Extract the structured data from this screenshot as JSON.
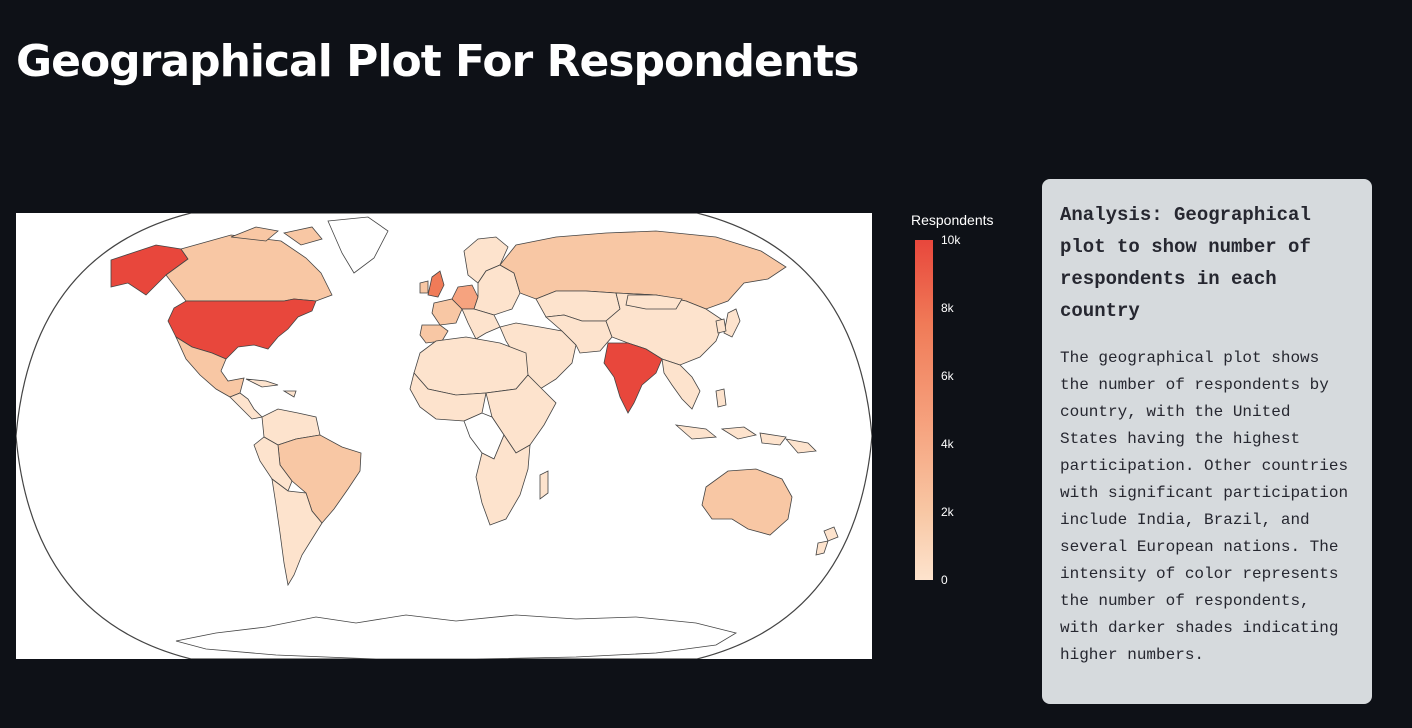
{
  "page": {
    "title": "Geographical Plot For Respondents"
  },
  "colors": {
    "background": "#0e1117",
    "map_background": "#ffffff",
    "card_background": "#d6dadd",
    "high": "#e8473c",
    "low": "#fde3cd"
  },
  "chart_data": {
    "type": "choropleth",
    "projection": "robinson",
    "colorbar": {
      "title": "Respondents",
      "range": [
        0,
        10000
      ],
      "ticks": [
        "10k",
        "8k",
        "6k",
        "4k",
        "2k",
        "0"
      ],
      "colorscale": [
        "#fde3cd",
        "#f8c7a4",
        "#f6a37f",
        "#f07b58",
        "#e8473c"
      ]
    },
    "regions": [
      {
        "name": "United States",
        "value": 10000
      },
      {
        "name": "India",
        "value": 9500
      },
      {
        "name": "United Kingdom",
        "value": 5000
      },
      {
        "name": "Germany",
        "value": 4200
      },
      {
        "name": "Canada",
        "value": 2800
      },
      {
        "name": "Brazil",
        "value": 2600
      },
      {
        "name": "Russia",
        "value": 2500
      },
      {
        "name": "Australia",
        "value": 2300
      },
      {
        "name": "France",
        "value": 2300
      },
      {
        "name": "Spain",
        "value": 2000
      },
      {
        "name": "China",
        "value": 1300
      },
      {
        "name": "Kazakhstan",
        "value": 900
      },
      {
        "name": "Mexico",
        "value": 1200
      }
    ]
  },
  "analysis": {
    "heading": "Analysis: Geographical plot to show number of respondents in each country",
    "body": "The geographical plot shows the number of respondents by country, with the United States having the highest participation. Other countries with significant participation include India, Brazil, and several European nations. The intensity of color represents the number of respondents, with darker shades indicating higher numbers."
  }
}
